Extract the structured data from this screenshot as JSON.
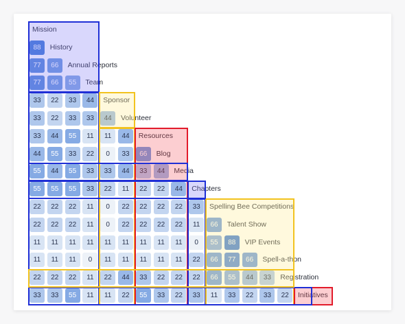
{
  "domain_colors": {
    "blue": "#1f2fd6",
    "yellow": "#f2c31f",
    "red": "#e21b2b",
    "blue_fill": "rgba(120,110,245,0.28)",
    "yellow_fill": "rgba(255,236,150,0.32)",
    "red_fill": "rgba(245,80,90,0.28)",
    "cell_low": "#edf2f8",
    "cell_high": "#2f6fd4"
  },
  "items": [
    {
      "id": "mission",
      "label": "Mission",
      "group": "blue",
      "order": 0
    },
    {
      "id": "history",
      "label": "History",
      "group": "blue",
      "order": 1
    },
    {
      "id": "annual_reports",
      "label": "Annual Reports",
      "group": "blue",
      "order": 2
    },
    {
      "id": "team",
      "label": "Team",
      "group": "blue",
      "order": 3
    },
    {
      "id": "sponsor",
      "label": "Sponsor",
      "group": "yellow",
      "order": 4
    },
    {
      "id": "volunteer",
      "label": "Volunteer",
      "group": "yellow",
      "order": 5
    },
    {
      "id": "resources",
      "label": "Resources",
      "group": "red",
      "order": 6
    },
    {
      "id": "blog",
      "label": "Blog",
      "group": "red",
      "order": 7
    },
    {
      "id": "media",
      "label": "Media",
      "group": "red",
      "order": 8
    },
    {
      "id": "chapters",
      "label": "Chapters",
      "group": "blue",
      "order": 9
    },
    {
      "id": "spelling_bee",
      "label": "Spelling Bee Competitions",
      "group": "yellow",
      "order": 10
    },
    {
      "id": "talent_show",
      "label": "Talent Show",
      "group": "yellow",
      "order": 11
    },
    {
      "id": "vip_events",
      "label": "VIP Events",
      "group": "yellow",
      "order": 12
    },
    {
      "id": "spell_a_thon",
      "label": "Spell-a-thon",
      "group": "yellow",
      "order": 13
    },
    {
      "id": "registration",
      "label": "Registration",
      "group": "yellow",
      "order": 14
    },
    {
      "id": "initiatives",
      "label": "Initiatives",
      "group": "red",
      "order": 15
    }
  ],
  "matrix_rows": [
    [
      88
    ],
    [
      77,
      66
    ],
    [
      77,
      66,
      55
    ],
    [
      33,
      22,
      33,
      44
    ],
    [
      33,
      22,
      33,
      33,
      44
    ],
    [
      33,
      44,
      55,
      11,
      11,
      44
    ],
    [
      44,
      55,
      33,
      22,
      0,
      33,
      66
    ],
    [
      55,
      44,
      55,
      33,
      33,
      44,
      33,
      44
    ],
    [
      55,
      55,
      55,
      33,
      22,
      11,
      22,
      22,
      44
    ],
    [
      22,
      22,
      22,
      11,
      0,
      22,
      22,
      22,
      22,
      33
    ],
    [
      22,
      22,
      22,
      11,
      0,
      22,
      22,
      22,
      22,
      11,
      66
    ],
    [
      11,
      11,
      11,
      11,
      11,
      11,
      11,
      11,
      11,
      0,
      55,
      88
    ],
    [
      11,
      11,
      11,
      0,
      11,
      11,
      11,
      11,
      11,
      22,
      66,
      77,
      66
    ],
    [
      22,
      22,
      22,
      11,
      22,
      44,
      33,
      22,
      22,
      22,
      66,
      55,
      44,
      33
    ],
    [
      33,
      33,
      55,
      11,
      11,
      22,
      55,
      33,
      22,
      33,
      11,
      33,
      22,
      33,
      22
    ]
  ],
  "group_boxes": [
    {
      "group": "blue",
      "start": 0,
      "end": 3
    },
    {
      "group": "yellow",
      "start": 4,
      "end": 5
    },
    {
      "group": "red",
      "start": 6,
      "end": 8
    },
    {
      "group": "blue",
      "start": 9,
      "end": 9
    },
    {
      "group": "yellow",
      "start": 10,
      "end": 14
    },
    {
      "group": "red",
      "start": 15,
      "end": 15
    }
  ]
}
